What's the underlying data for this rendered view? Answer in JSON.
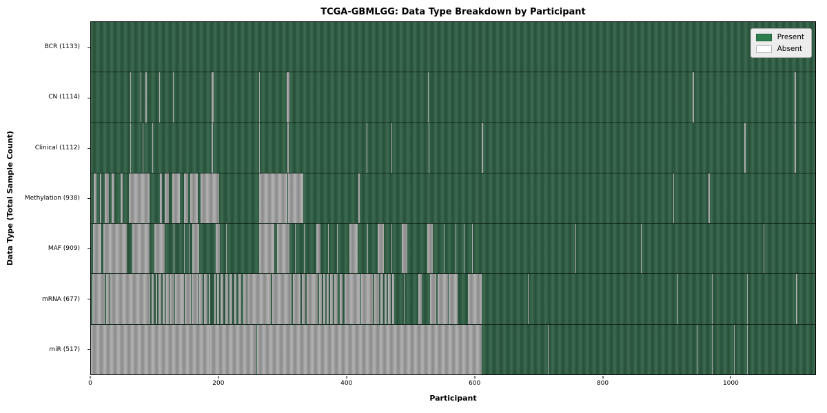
{
  "title": "TCGA-GBMLGG: Data Type Breakdown by Participant",
  "xlabel": "Participant",
  "ylabel": "Data Type (Total Sample Count)",
  "legend": {
    "present_label": "Present",
    "absent_label": "Absent"
  },
  "colors": {
    "present_light": "#3d6b51",
    "present_dark": "#264f39",
    "absent_light": "#b3b3b3",
    "absent_dark": "#8a8a8a",
    "legend_present": "#2e7d4f",
    "legend_bg": "#ececec",
    "legend_border": "#b0b0b0"
  },
  "chart_data": {
    "type": "heatmap",
    "title": "TCGA-GBMLGG: Data Type Breakdown by Participant",
    "xlabel": "Participant",
    "ylabel": "Data Type (Total Sample Count)",
    "legend_entries": [
      "Present",
      "Absent"
    ],
    "legend_position": "upper right",
    "grid": false,
    "x_max": 1133,
    "x_ticks": [
      0,
      200,
      400,
      600,
      800,
      1000
    ],
    "states": {
      "present": "green",
      "absent": "gray"
    },
    "rows": [
      {
        "name": "BCR",
        "label": "BCR (1133)",
        "present_count": 1133,
        "absent_runs": []
      },
      {
        "name": "CN",
        "label": "CN (1114)",
        "present_count": 1114,
        "absent_runs": [
          [
            61,
            62
          ],
          [
            78,
            79
          ],
          [
            85,
            87
          ],
          [
            107,
            108
          ],
          [
            128,
            129
          ],
          [
            189,
            192
          ],
          [
            263,
            264
          ],
          [
            306,
            310
          ],
          [
            527,
            528
          ],
          [
            941,
            943
          ],
          [
            1101,
            1103
          ]
        ]
      },
      {
        "name": "Clinical",
        "label": "Clinical (1112)",
        "present_count": 1112,
        "absent_runs": [
          [
            61,
            62
          ],
          [
            81,
            82
          ],
          [
            96,
            97
          ],
          [
            189,
            191
          ],
          [
            263,
            264
          ],
          [
            307,
            309
          ],
          [
            431,
            432
          ],
          [
            470,
            471
          ],
          [
            528,
            529
          ],
          [
            545,
            546
          ],
          [
            611,
            613
          ],
          [
            1022,
            1024
          ],
          [
            1101,
            1103
          ]
        ]
      },
      {
        "name": "Methylation",
        "label": "Methylation (938)",
        "present_count": 938,
        "absent_runs": [
          [
            4,
            9
          ],
          [
            14,
            16
          ],
          [
            22,
            28
          ],
          [
            32,
            37
          ],
          [
            46,
            50
          ],
          [
            59,
            92
          ],
          [
            108,
            111
          ],
          [
            115,
            122
          ],
          [
            127,
            139
          ],
          [
            146,
            152
          ],
          [
            155,
            167
          ],
          [
            171,
            200
          ],
          [
            263,
            307
          ],
          [
            308,
            332
          ],
          [
            418,
            420
          ],
          [
            911,
            912
          ],
          [
            966,
            968
          ]
        ]
      },
      {
        "name": "MAF",
        "label": "MAF (909)",
        "present_count": 909,
        "absent_runs": [
          [
            3,
            16
          ],
          [
            19,
            56
          ],
          [
            65,
            92
          ],
          [
            99,
            115
          ],
          [
            129,
            130
          ],
          [
            146,
            147
          ],
          [
            153,
            154
          ],
          [
            159,
            169
          ],
          [
            195,
            202
          ],
          [
            211,
            212
          ],
          [
            263,
            287
          ],
          [
            291,
            311
          ],
          [
            319,
            320
          ],
          [
            333,
            334
          ],
          [
            352,
            359
          ],
          [
            371,
            372
          ],
          [
            385,
            386
          ],
          [
            404,
            417
          ],
          [
            432,
            433
          ],
          [
            448,
            458
          ],
          [
            470,
            471
          ],
          [
            486,
            495
          ],
          [
            526,
            535
          ],
          [
            552,
            553
          ],
          [
            559,
            560
          ],
          [
            570,
            571
          ],
          [
            583,
            584
          ],
          [
            596,
            597
          ],
          [
            758,
            759
          ],
          [
            860,
            861
          ],
          [
            1052,
            1053
          ]
        ]
      },
      {
        "name": "mRNA",
        "label": "mRNA (677)",
        "present_count": 677,
        "absent_runs": [
          [
            2,
            22
          ],
          [
            24,
            29
          ],
          [
            30,
            93
          ],
          [
            95,
            98
          ],
          [
            101,
            104
          ],
          [
            106,
            110
          ],
          [
            112,
            116
          ],
          [
            118,
            122
          ],
          [
            123,
            130
          ],
          [
            131,
            146
          ],
          [
            147,
            156
          ],
          [
            157,
            168
          ],
          [
            169,
            175
          ],
          [
            177,
            182
          ],
          [
            184,
            186
          ],
          [
            193,
            195
          ],
          [
            197,
            200
          ],
          [
            203,
            207
          ],
          [
            210,
            214
          ],
          [
            217,
            221
          ],
          [
            224,
            228
          ],
          [
            231,
            235
          ],
          [
            238,
            244
          ],
          [
            245,
            281
          ],
          [
            283,
            314
          ],
          [
            316,
            328
          ],
          [
            330,
            335
          ],
          [
            337,
            355
          ],
          [
            357,
            361
          ],
          [
            363,
            367
          ],
          [
            369,
            372
          ],
          [
            374,
            378
          ],
          [
            381,
            386
          ],
          [
            389,
            394
          ],
          [
            397,
            421
          ],
          [
            423,
            441
          ],
          [
            443,
            451
          ],
          [
            453,
            457
          ],
          [
            459,
            463
          ],
          [
            465,
            469
          ],
          [
            471,
            474
          ],
          [
            489,
            491
          ],
          [
            512,
            517
          ],
          [
            530,
            540
          ],
          [
            542,
            558
          ],
          [
            560,
            573
          ],
          [
            590,
            611
          ],
          [
            628,
            629
          ],
          [
            684,
            685
          ],
          [
            917,
            918
          ],
          [
            971,
            972
          ],
          [
            1026,
            1027
          ],
          [
            1103,
            1105
          ]
        ]
      },
      {
        "name": "miR",
        "label": "miR (517)",
        "present_count": 517,
        "absent_runs": [
          [
            0,
            186
          ],
          [
            187,
            259
          ],
          [
            260,
            611
          ],
          [
            683,
            684
          ],
          [
            715,
            716
          ],
          [
            948,
            949
          ],
          [
            971,
            972
          ],
          [
            1006,
            1007
          ],
          [
            1026,
            1027
          ]
        ]
      }
    ]
  }
}
